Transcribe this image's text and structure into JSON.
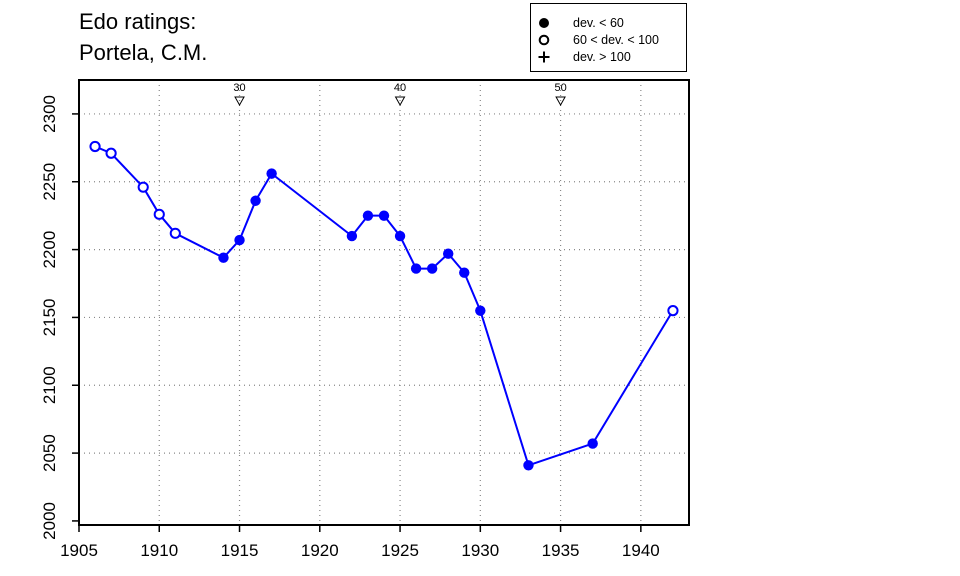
{
  "title": {
    "line1": "Edo ratings:",
    "line2": "Portela, C.M."
  },
  "legend": {
    "items": [
      {
        "label": "dev. < 60",
        "symbol": "filled-circle-icon"
      },
      {
        "label": "60 < dev. < 100",
        "symbol": "open-circle-icon"
      },
      {
        "label": "dev. > 100",
        "symbol": "plus-icon"
      }
    ]
  },
  "colors": {
    "series": "#0000ff",
    "axis": "#000000",
    "grid": "#888888"
  },
  "chart_data": {
    "type": "line",
    "title": "Edo ratings: Portela, C.M.",
    "xlabel": "",
    "ylabel": "",
    "xlim": [
      1905,
      1943
    ],
    "ylim": [
      1997,
      2325
    ],
    "x_ticks": [
      1905,
      1910,
      1915,
      1920,
      1925,
      1930,
      1935,
      1940
    ],
    "y_ticks": [
      2000,
      2050,
      2100,
      2150,
      2200,
      2250,
      2300
    ],
    "grid": true,
    "legend_position": "top-right",
    "age_markers": [
      {
        "x": 1915,
        "label": "30"
      },
      {
        "x": 1925,
        "label": "40"
      },
      {
        "x": 1935,
        "label": "50"
      }
    ],
    "series": [
      {
        "points": [
          {
            "x": 1906,
            "y": 2276,
            "marker": "open"
          },
          {
            "x": 1907,
            "y": 2271,
            "marker": "open"
          },
          {
            "x": 1909,
            "y": 2246,
            "marker": "open"
          },
          {
            "x": 1910,
            "y": 2226,
            "marker": "open"
          },
          {
            "x": 1911,
            "y": 2212,
            "marker": "open"
          },
          {
            "x": 1914,
            "y": 2194,
            "marker": "filled"
          },
          {
            "x": 1915,
            "y": 2207,
            "marker": "filled"
          },
          {
            "x": 1916,
            "y": 2236,
            "marker": "filled"
          },
          {
            "x": 1917,
            "y": 2256,
            "marker": "filled"
          },
          {
            "x": 1922,
            "y": 2210,
            "marker": "filled"
          },
          {
            "x": 1923,
            "y": 2225,
            "marker": "filled"
          },
          {
            "x": 1924,
            "y": 2225,
            "marker": "filled"
          },
          {
            "x": 1925,
            "y": 2210,
            "marker": "filled"
          },
          {
            "x": 1926,
            "y": 2186,
            "marker": "filled"
          },
          {
            "x": 1927,
            "y": 2186,
            "marker": "filled"
          },
          {
            "x": 1928,
            "y": 2197,
            "marker": "filled"
          },
          {
            "x": 1929,
            "y": 2183,
            "marker": "filled"
          },
          {
            "x": 1930,
            "y": 2155,
            "marker": "filled"
          },
          {
            "x": 1933,
            "y": 2041,
            "marker": "filled"
          },
          {
            "x": 1937,
            "y": 2057,
            "marker": "filled"
          },
          {
            "x": 1942,
            "y": 2155,
            "marker": "open"
          }
        ]
      }
    ]
  }
}
